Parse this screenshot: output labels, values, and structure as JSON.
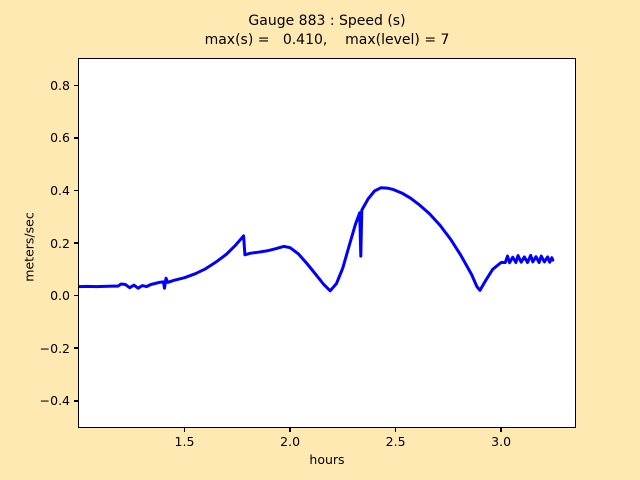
{
  "figure": {
    "background_color": "#ffe9b3",
    "axes_background_color": "#ffffff"
  },
  "chart_data": {
    "type": "line",
    "title": "Gauge 883 : Speed (s)",
    "subtitle": "max(s) =   0.410,    max(level) = 7",
    "xlabel": "hours",
    "ylabel": "meters/sec",
    "xlim": [
      1.0,
      3.35
    ],
    "ylim": [
      -0.5,
      0.9
    ],
    "x_ticks": [
      1.5,
      2.0,
      2.5,
      3.0
    ],
    "x_tick_labels": [
      "1.5",
      "2.0",
      "2.5",
      "3.0"
    ],
    "y_ticks": [
      0.8,
      0.6,
      0.4,
      0.2,
      0.0,
      -0.2,
      -0.4
    ],
    "y_tick_labels": [
      "0.8",
      "0.6",
      "0.4",
      "0.2",
      "0.0",
      "−0.2",
      "−0.4"
    ],
    "grid": false,
    "legend": null,
    "line_color": "#0000ff",
    "line_width": 3,
    "annotations": {
      "max_s": 0.41,
      "max_level": 7
    },
    "series": [
      {
        "name": "speed",
        "points": [
          [
            1.0,
            0.034
          ],
          [
            1.04,
            0.035
          ],
          [
            1.08,
            0.034
          ],
          [
            1.12,
            0.035
          ],
          [
            1.16,
            0.036
          ],
          [
            1.185,
            0.036
          ],
          [
            1.2,
            0.044
          ],
          [
            1.22,
            0.042
          ],
          [
            1.24,
            0.03
          ],
          [
            1.26,
            0.04
          ],
          [
            1.28,
            0.028
          ],
          [
            1.3,
            0.038
          ],
          [
            1.32,
            0.034
          ],
          [
            1.34,
            0.042
          ],
          [
            1.36,
            0.046
          ],
          [
            1.38,
            0.05
          ],
          [
            1.4,
            0.052
          ],
          [
            1.405,
            0.028
          ],
          [
            1.412,
            0.066
          ],
          [
            1.42,
            0.05
          ],
          [
            1.45,
            0.058
          ],
          [
            1.5,
            0.068
          ],
          [
            1.55,
            0.083
          ],
          [
            1.6,
            0.102
          ],
          [
            1.65,
            0.128
          ],
          [
            1.7,
            0.158
          ],
          [
            1.74,
            0.19
          ],
          [
            1.77,
            0.218
          ],
          [
            1.78,
            0.227
          ],
          [
            1.786,
            0.155
          ],
          [
            1.81,
            0.161
          ],
          [
            1.85,
            0.165
          ],
          [
            1.89,
            0.17
          ],
          [
            1.93,
            0.178
          ],
          [
            1.97,
            0.187
          ],
          [
            2.0,
            0.182
          ],
          [
            2.04,
            0.158
          ],
          [
            2.08,
            0.122
          ],
          [
            2.12,
            0.082
          ],
          [
            2.16,
            0.042
          ],
          [
            2.19,
            0.018
          ],
          [
            2.22,
            0.046
          ],
          [
            2.25,
            0.105
          ],
          [
            2.28,
            0.19
          ],
          [
            2.31,
            0.272
          ],
          [
            2.33,
            0.315
          ],
          [
            2.335,
            0.15
          ],
          [
            2.34,
            0.325
          ],
          [
            2.37,
            0.368
          ],
          [
            2.4,
            0.398
          ],
          [
            2.43,
            0.41
          ],
          [
            2.46,
            0.409
          ],
          [
            2.49,
            0.403
          ],
          [
            2.53,
            0.39
          ],
          [
            2.57,
            0.371
          ],
          [
            2.61,
            0.347
          ],
          [
            2.66,
            0.312
          ],
          [
            2.71,
            0.268
          ],
          [
            2.76,
            0.215
          ],
          [
            2.81,
            0.152
          ],
          [
            2.86,
            0.08
          ],
          [
            2.885,
            0.034
          ],
          [
            2.9,
            0.02
          ],
          [
            2.93,
            0.062
          ],
          [
            2.96,
            0.1
          ],
          [
            3.0,
            0.126
          ],
          [
            3.02,
            0.126
          ],
          [
            3.03,
            0.15
          ],
          [
            3.04,
            0.125
          ],
          [
            3.055,
            0.146
          ],
          [
            3.07,
            0.126
          ],
          [
            3.08,
            0.152
          ],
          [
            3.095,
            0.127
          ],
          [
            3.11,
            0.147
          ],
          [
            3.125,
            0.126
          ],
          [
            3.14,
            0.153
          ],
          [
            3.15,
            0.128
          ],
          [
            3.165,
            0.148
          ],
          [
            3.18,
            0.126
          ],
          [
            3.19,
            0.15
          ],
          [
            3.205,
            0.128
          ],
          [
            3.22,
            0.147
          ],
          [
            3.23,
            0.127
          ],
          [
            3.24,
            0.144
          ],
          [
            3.245,
            0.135
          ]
        ]
      }
    ]
  }
}
